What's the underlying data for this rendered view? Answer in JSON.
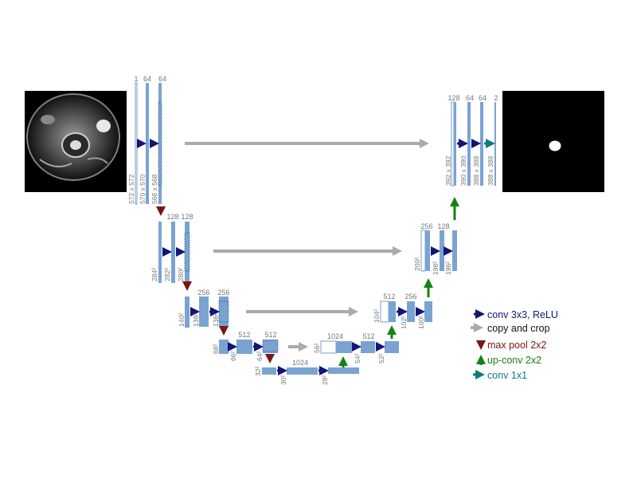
{
  "colors": {
    "block": "#7aa3d2",
    "block_edge": "#5a86bb",
    "conv": "#101577",
    "copy": "#aaaaaa",
    "pool": "#7b1515",
    "upconv": "#138213",
    "conv1x1": "#0f7b7b",
    "label": "#777777"
  },
  "channels": {
    "c1a": "1",
    "c1b": "64",
    "c1c": "64",
    "c2a": "128",
    "c2b": "128",
    "c3a": "256",
    "c3b": "256",
    "c4a": "512",
    "c4b": "512",
    "c5a": "1024",
    "d4a": "1024",
    "d4b": "512",
    "d3a": "512",
    "d3b": "256",
    "d2a": "256",
    "d2b": "128",
    "d1a": "128",
    "d1b": "64",
    "d1c": "64",
    "d1d": "2"
  },
  "dims": {
    "l1a": "572 x 572",
    "l1b": "570 x 570",
    "l1c": "568 x 568",
    "l2a": "284²",
    "l2b": "282²",
    "l2c": "280²",
    "l3a": "140²",
    "l3b": "138²",
    "l3c": "136²",
    "l4a": "68²",
    "l4b": "66²",
    "l4c": "64²",
    "l5a": "32²",
    "l5b": "30²",
    "l5c": "28²",
    "r4a": "56²",
    "r4b": "54²",
    "r4c": "52²",
    "r3a": "104²",
    "r3b": "102²",
    "r3c": "100²",
    "r2a": "200²",
    "r2b": "198²",
    "r2c": "196²",
    "r1a": "392 x 392",
    "r1b": "390 x 390",
    "r1c": "388 x 388",
    "r1d": "388 x 388"
  },
  "legend": {
    "conv": "conv 3x3, ReLU",
    "copy": "copy and crop",
    "pool": "max pool 2x2",
    "upconv": "up-conv 2x2",
    "conv1x1": "conv 1x1"
  },
  "icons": {
    "input": "cardiac-mri-input-image",
    "output": "segmentation-mask-output-image"
  }
}
